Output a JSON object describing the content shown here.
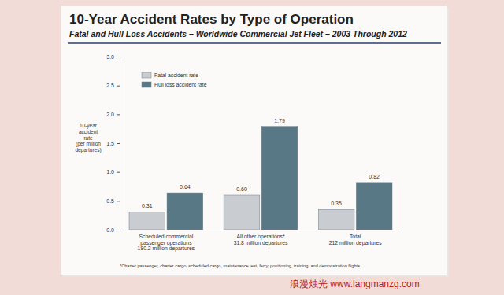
{
  "chart_data": {
    "type": "bar",
    "title": "10-Year Accident Rates by Type of Operation",
    "subtitle": "Fatal and Hull Loss Accidents – Worldwide Commercial Jet Fleet – 2003 Through 2012",
    "y_label": "10-year\naccident\nrate\n(per million\ndepartures)",
    "categories": [
      "Scheduled commercial\npassenger operations\n180.2 million departures",
      "All other operations*\n31.8 million departures",
      "Total\n212 million departures"
    ],
    "series": [
      {
        "name": "Fatal accident rate",
        "color": "#c9cdd2",
        "values": [
          0.31,
          0.6,
          0.35
        ],
        "value_labels": [
          "0.31",
          "0.60",
          "0.35"
        ]
      },
      {
        "name": "Hull loss accident rate",
        "color": "#587886",
        "values": [
          0.64,
          1.79,
          0.82
        ]
      }
    ],
    "ylim": [
      0,
      3
    ],
    "yticks": [
      {
        "value": 0,
        "label": "0.0"
      },
      0.5,
      {
        "value": 1,
        "label": "1.0"
      },
      1.5,
      {
        "value": 2,
        "label": "2.0"
      },
      2.5,
      {
        "value": 3,
        "label": "3.0"
      }
    ],
    "grid": false,
    "legend": "top-left",
    "data_labels": true,
    "annotations": [
      "*Charter passenger, charter cargo, scheduled cargo, maintenance test, ferry, positioning, training, and demonstration flights",
      "浪漫烛光 www.langmanzg.com"
    ]
  }
}
